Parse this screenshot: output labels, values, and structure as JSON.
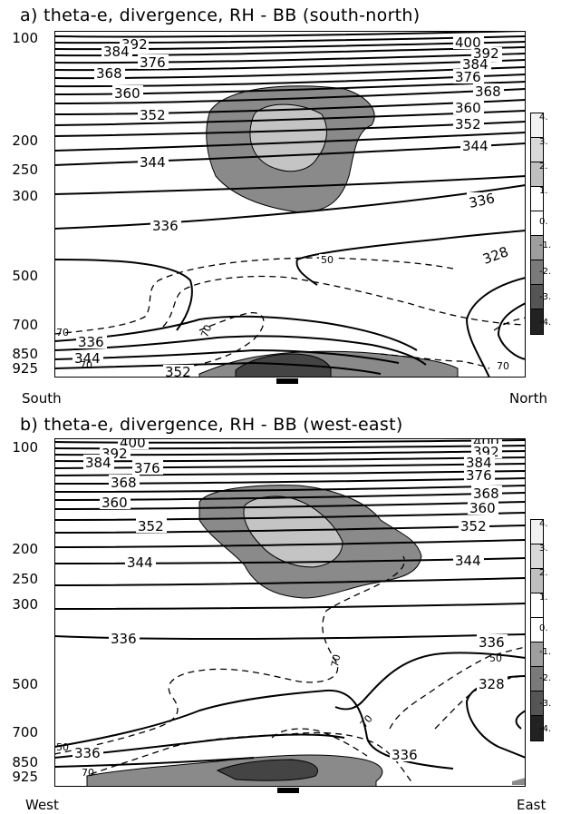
{
  "chart_data": [
    {
      "type": "contour",
      "panel_id": "a",
      "title": "a)  theta-e, divergence, RH - BB (south-north)",
      "x_start_label": "South",
      "x_end_label": "North",
      "y_ticks": [
        "100",
        "200",
        "250",
        "300",
        "500",
        "700",
        "850",
        "925"
      ],
      "theta_e_contour_labels": [
        "392",
        "384",
        "376",
        "368",
        "360",
        "352",
        "344",
        "336",
        "336",
        "400",
        "392",
        "384",
        "376",
        "368",
        "360",
        "352",
        "344",
        "336",
        "328",
        "336",
        "344",
        "352"
      ],
      "rh_contour_labels": [
        "50",
        "70",
        "70",
        "50",
        "70"
      ],
      "colorbar_labels": [
        "4.",
        "3.",
        "2.",
        "1.",
        "0.",
        "-1.",
        "-2.",
        "-3.",
        "-4."
      ],
      "colorbar_colors": [
        "#f2f2f2",
        "#d9d9d9",
        "#bfbfbf",
        "#ffffff",
        "#ffffff",
        "#9e9e9e",
        "#7a7a7a",
        "#555555",
        "#222222"
      ]
    },
    {
      "type": "contour",
      "panel_id": "b",
      "title": "b)  theta-e, divergence, RH - BB (west-east)",
      "x_start_label": "West",
      "x_end_label": "East",
      "y_ticks": [
        "100",
        "200",
        "250",
        "300",
        "500",
        "700",
        "850",
        "925"
      ],
      "theta_e_contour_labels": [
        "400",
        "392",
        "384",
        "376",
        "368",
        "360",
        "352",
        "344",
        "336",
        "400",
        "392",
        "384",
        "376",
        "368",
        "360",
        "352",
        "344",
        "336",
        "328",
        "336",
        "336"
      ],
      "rh_contour_labels": [
        "70",
        "50",
        "70",
        "50",
        "70"
      ],
      "colorbar_labels": [
        "4.",
        "3.",
        "2.",
        "1.",
        "0.",
        "-1.",
        "-2.",
        "-3.",
        "-4."
      ],
      "colorbar_colors": [
        "#f2f2f2",
        "#d9d9d9",
        "#bfbfbf",
        "#ffffff",
        "#ffffff",
        "#9e9e9e",
        "#7a7a7a",
        "#555555",
        "#222222"
      ]
    }
  ]
}
